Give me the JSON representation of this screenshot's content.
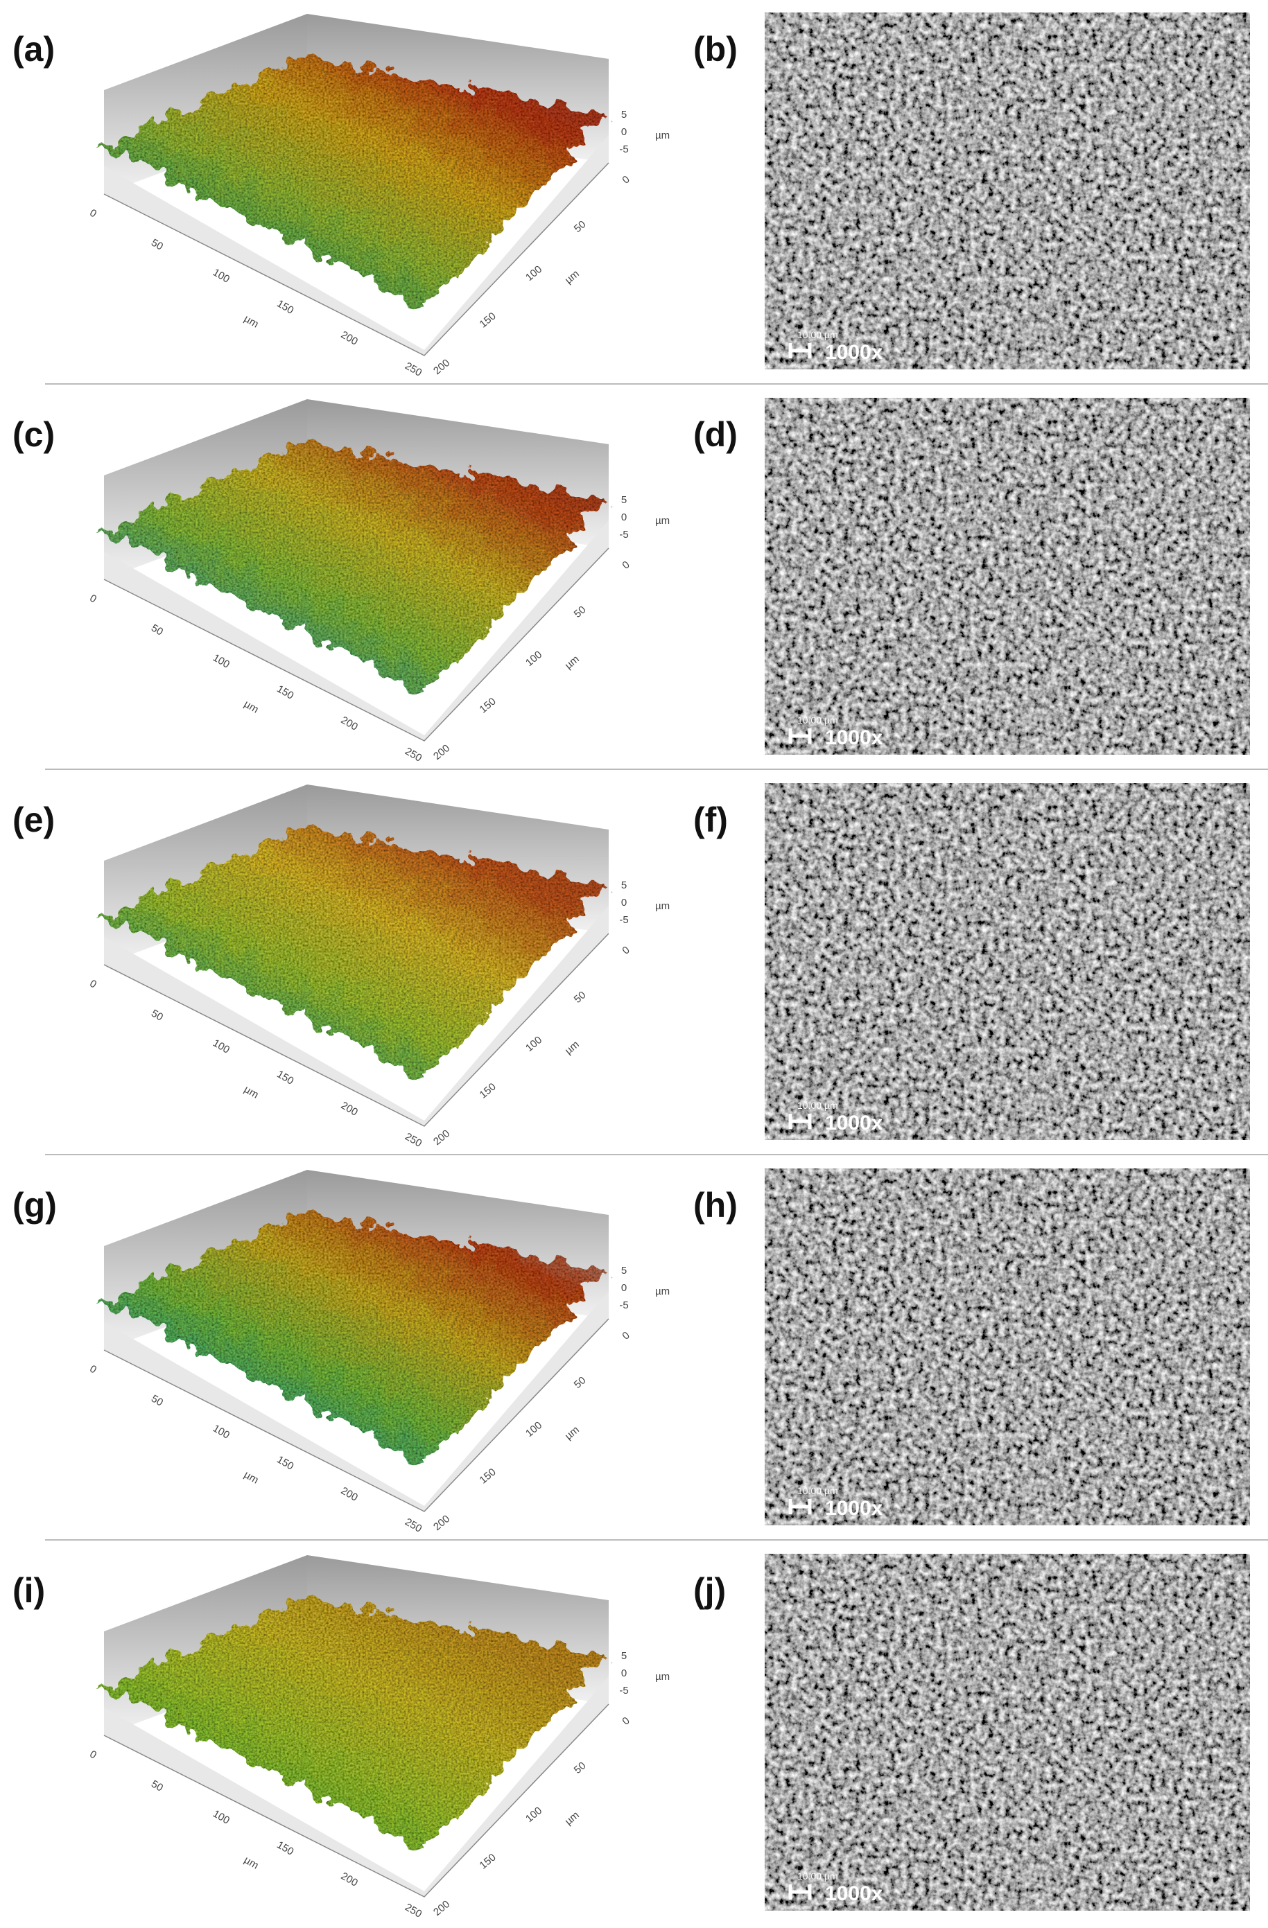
{
  "panels": [
    {
      "surface": {
        "label": "(a)",
        "z_ticks": [
          5,
          0,
          -5
        ],
        "z_unit": "µm",
        "x_ticks": [
          0,
          50,
          100,
          150,
          200,
          250
        ],
        "x_unit": "µm",
        "y_ticks": [
          0,
          50,
          100,
          150,
          200
        ],
        "y_unit": "µm"
      },
      "sem": {
        "label": "(b)",
        "scale_bar": "10.00 µm",
        "magnification": "1000x"
      }
    },
    {
      "surface": {
        "label": "(c)",
        "z_ticks": [
          5,
          0,
          -5
        ],
        "z_unit": "µm",
        "x_ticks": [
          0,
          50,
          100,
          150,
          200,
          250
        ],
        "x_unit": "µm",
        "y_ticks": [
          0,
          50,
          100,
          150,
          200
        ],
        "y_unit": "µm"
      },
      "sem": {
        "label": "(d)",
        "scale_bar": "10.00 µm",
        "magnification": "1000x"
      }
    },
    {
      "surface": {
        "label": "(e)",
        "z_ticks": [
          5,
          0,
          -5
        ],
        "z_unit": "µm",
        "x_ticks": [
          0,
          50,
          100,
          150,
          200,
          250
        ],
        "x_unit": "µm",
        "y_ticks": [
          0,
          50,
          100,
          150,
          200
        ],
        "y_unit": "µm"
      },
      "sem": {
        "label": "(f)",
        "scale_bar": "10.00 µm",
        "magnification": "1000x"
      }
    },
    {
      "surface": {
        "label": "(g)",
        "z_ticks": [
          5,
          0,
          -5
        ],
        "z_unit": "µm",
        "x_ticks": [
          0,
          50,
          100,
          150,
          200,
          250
        ],
        "x_unit": "µm",
        "y_ticks": [
          0,
          50,
          100,
          150,
          200
        ],
        "y_unit": "µm"
      },
      "sem": {
        "label": "(h)",
        "scale_bar": "10.00 µm",
        "magnification": "1000x"
      }
    },
    {
      "surface": {
        "label": "(i)",
        "z_ticks": [
          5,
          0,
          -5
        ],
        "z_unit": "µm",
        "x_ticks": [
          0,
          50,
          100,
          150,
          200,
          250
        ],
        "x_unit": "µm",
        "y_ticks": [
          0,
          50,
          100,
          150,
          200
        ],
        "y_unit": "µm"
      },
      "sem": {
        "label": "(j)",
        "scale_bar": "10.00 µm",
        "magnification": "1000x"
      }
    }
  ]
}
